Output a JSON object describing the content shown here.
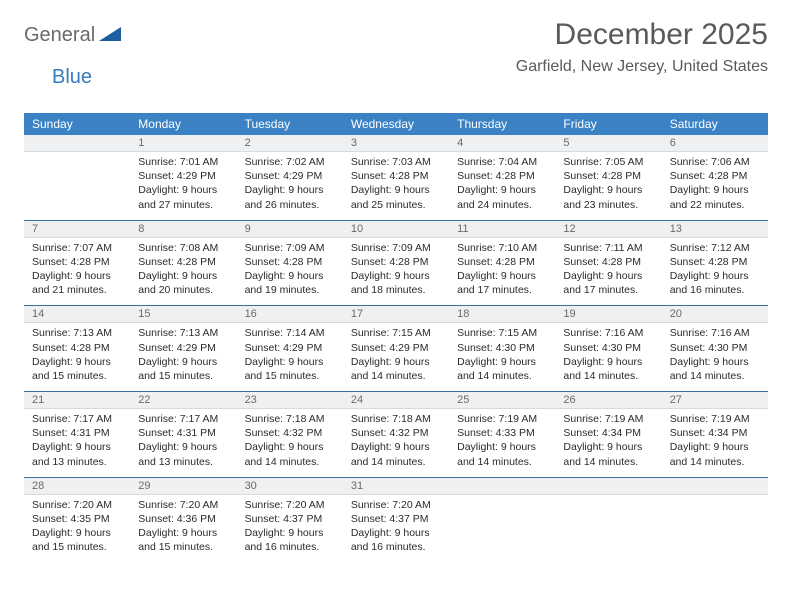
{
  "logo": {
    "text1": "General",
    "text2": "Blue"
  },
  "title": "December 2025",
  "location": "Garfield, New Jersey, United States",
  "colors": {
    "header_bg": "#3b82c4",
    "header_text": "#ffffff",
    "daynum_bg": "#eef0f2",
    "daynum_text": "#6a6a6a",
    "row_divider": "#3b6fa0",
    "body_text": "#2b2b2b",
    "title_text": "#5a5a5a",
    "logo_gray": "#6a6a6a",
    "logo_blue": "#377bbd"
  },
  "day_headers": [
    "Sunday",
    "Monday",
    "Tuesday",
    "Wednesday",
    "Thursday",
    "Friday",
    "Saturday"
  ],
  "weeks": [
    [
      null,
      {
        "n": "1",
        "sr": "7:01 AM",
        "ss": "4:29 PM",
        "dl": "9 hours and 27 minutes."
      },
      {
        "n": "2",
        "sr": "7:02 AM",
        "ss": "4:29 PM",
        "dl": "9 hours and 26 minutes."
      },
      {
        "n": "3",
        "sr": "7:03 AM",
        "ss": "4:28 PM",
        "dl": "9 hours and 25 minutes."
      },
      {
        "n": "4",
        "sr": "7:04 AM",
        "ss": "4:28 PM",
        "dl": "9 hours and 24 minutes."
      },
      {
        "n": "5",
        "sr": "7:05 AM",
        "ss": "4:28 PM",
        "dl": "9 hours and 23 minutes."
      },
      {
        "n": "6",
        "sr": "7:06 AM",
        "ss": "4:28 PM",
        "dl": "9 hours and 22 minutes."
      }
    ],
    [
      {
        "n": "7",
        "sr": "7:07 AM",
        "ss": "4:28 PM",
        "dl": "9 hours and 21 minutes."
      },
      {
        "n": "8",
        "sr": "7:08 AM",
        "ss": "4:28 PM",
        "dl": "9 hours and 20 minutes."
      },
      {
        "n": "9",
        "sr": "7:09 AM",
        "ss": "4:28 PM",
        "dl": "9 hours and 19 minutes."
      },
      {
        "n": "10",
        "sr": "7:09 AM",
        "ss": "4:28 PM",
        "dl": "9 hours and 18 minutes."
      },
      {
        "n": "11",
        "sr": "7:10 AM",
        "ss": "4:28 PM",
        "dl": "9 hours and 17 minutes."
      },
      {
        "n": "12",
        "sr": "7:11 AM",
        "ss": "4:28 PM",
        "dl": "9 hours and 17 minutes."
      },
      {
        "n": "13",
        "sr": "7:12 AM",
        "ss": "4:28 PM",
        "dl": "9 hours and 16 minutes."
      }
    ],
    [
      {
        "n": "14",
        "sr": "7:13 AM",
        "ss": "4:28 PM",
        "dl": "9 hours and 15 minutes."
      },
      {
        "n": "15",
        "sr": "7:13 AM",
        "ss": "4:29 PM",
        "dl": "9 hours and 15 minutes."
      },
      {
        "n": "16",
        "sr": "7:14 AM",
        "ss": "4:29 PM",
        "dl": "9 hours and 15 minutes."
      },
      {
        "n": "17",
        "sr": "7:15 AM",
        "ss": "4:29 PM",
        "dl": "9 hours and 14 minutes."
      },
      {
        "n": "18",
        "sr": "7:15 AM",
        "ss": "4:30 PM",
        "dl": "9 hours and 14 minutes."
      },
      {
        "n": "19",
        "sr": "7:16 AM",
        "ss": "4:30 PM",
        "dl": "9 hours and 14 minutes."
      },
      {
        "n": "20",
        "sr": "7:16 AM",
        "ss": "4:30 PM",
        "dl": "9 hours and 14 minutes."
      }
    ],
    [
      {
        "n": "21",
        "sr": "7:17 AM",
        "ss": "4:31 PM",
        "dl": "9 hours and 13 minutes."
      },
      {
        "n": "22",
        "sr": "7:17 AM",
        "ss": "4:31 PM",
        "dl": "9 hours and 13 minutes."
      },
      {
        "n": "23",
        "sr": "7:18 AM",
        "ss": "4:32 PM",
        "dl": "9 hours and 14 minutes."
      },
      {
        "n": "24",
        "sr": "7:18 AM",
        "ss": "4:32 PM",
        "dl": "9 hours and 14 minutes."
      },
      {
        "n": "25",
        "sr": "7:19 AM",
        "ss": "4:33 PM",
        "dl": "9 hours and 14 minutes."
      },
      {
        "n": "26",
        "sr": "7:19 AM",
        "ss": "4:34 PM",
        "dl": "9 hours and 14 minutes."
      },
      {
        "n": "27",
        "sr": "7:19 AM",
        "ss": "4:34 PM",
        "dl": "9 hours and 14 minutes."
      }
    ],
    [
      {
        "n": "28",
        "sr": "7:20 AM",
        "ss": "4:35 PM",
        "dl": "9 hours and 15 minutes."
      },
      {
        "n": "29",
        "sr": "7:20 AM",
        "ss": "4:36 PM",
        "dl": "9 hours and 15 minutes."
      },
      {
        "n": "30",
        "sr": "7:20 AM",
        "ss": "4:37 PM",
        "dl": "9 hours and 16 minutes."
      },
      {
        "n": "31",
        "sr": "7:20 AM",
        "ss": "4:37 PM",
        "dl": "9 hours and 16 minutes."
      },
      null,
      null,
      null
    ]
  ],
  "labels": {
    "sunrise": "Sunrise: ",
    "sunset": "Sunset: ",
    "daylight": "Daylight: "
  }
}
